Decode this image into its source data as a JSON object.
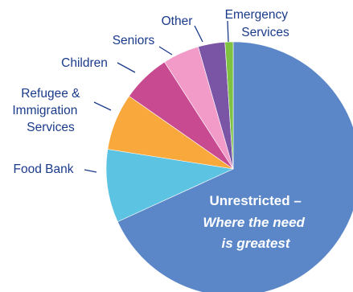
{
  "chart_data": {
    "type": "pie",
    "title": "",
    "slices": [
      {
        "label": "Unrestricted – Where the need is greatest",
        "value": 66,
        "color": "#5b87c9"
      },
      {
        "label": "Food Bank",
        "value": 9,
        "color": "#5cc3e2"
      },
      {
        "label": "Refugee & Immigration Services",
        "value": 7,
        "color": "#f9a83b"
      },
      {
        "label": "Children",
        "value": 6,
        "color": "#c84b91"
      },
      {
        "label": "Seniors",
        "value": 4.5,
        "color": "#f29bc8"
      },
      {
        "label": "Other",
        "value": 3.3,
        "color": "#7a55a6"
      },
      {
        "label": "Emergency Services",
        "value": 1,
        "color": "#7fc242"
      }
    ],
    "labels": {
      "emergency": [
        "Emergency",
        "Services"
      ],
      "other": [
        "Other"
      ],
      "seniors": [
        "Seniors"
      ],
      "children": [
        "Children"
      ],
      "refugee": [
        "Refugee &",
        "Immigration",
        "Services"
      ],
      "foodbank": [
        "Food Bank"
      ],
      "unrestricted": [
        "Unrestricted –",
        "Where the need",
        "is greatest"
      ]
    }
  }
}
